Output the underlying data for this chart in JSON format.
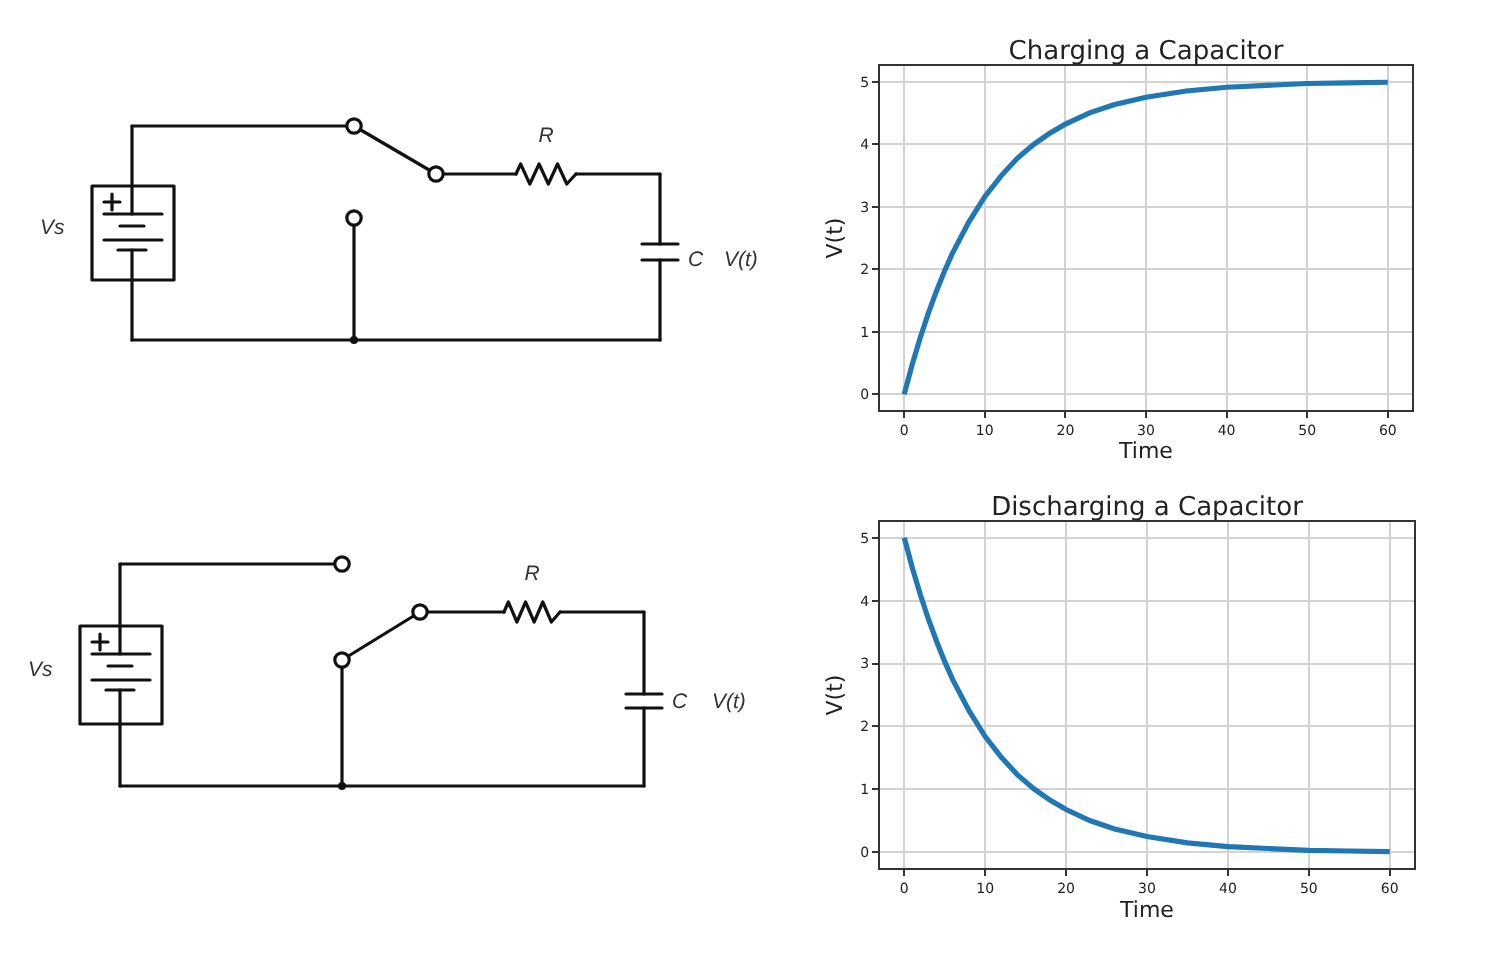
{
  "chart_data": [
    {
      "type": "other",
      "annotations": [
        "Vs",
        "R",
        "C",
        "V(t)"
      ]
    },
    {
      "type": "line",
      "title": "Charging a Capacitor",
      "xlabel": "Time",
      "ylabel": "V(t)",
      "x": [
        0,
        1,
        2,
        3,
        4,
        5,
        6,
        8,
        10,
        12,
        14,
        16,
        18,
        20,
        23,
        26,
        30,
        35,
        40,
        45,
        50,
        55,
        60
      ],
      "series": [
        {
          "color": "#1f77b4",
          "values": [
            0,
            0.48,
            0.91,
            1.3,
            1.65,
            1.97,
            2.26,
            2.75,
            3.16,
            3.49,
            3.77,
            3.99,
            4.17,
            4.32,
            4.5,
            4.63,
            4.75,
            4.85,
            4.91,
            4.94,
            4.97,
            4.98,
            4.99
          ]
        }
      ],
      "xlim": [
        -3,
        63
      ],
      "ylim": [
        -0.25,
        5.25
      ],
      "xticks": [
        0,
        10,
        20,
        30,
        40,
        50,
        60
      ],
      "yticks": [
        0,
        1,
        2,
        3,
        4,
        5
      ],
      "grid": true
    },
    {
      "type": "other",
      "annotations": [
        "Vs",
        "R",
        "C",
        "V(t)"
      ]
    },
    {
      "type": "line",
      "title": "Discharging a Capacitor",
      "xlabel": "Time",
      "ylabel": "V(t)",
      "x": [
        0,
        1,
        2,
        3,
        4,
        5,
        6,
        8,
        10,
        12,
        14,
        16,
        18,
        20,
        23,
        26,
        30,
        35,
        40,
        45,
        50,
        55,
        60
      ],
      "series": [
        {
          "color": "#1f77b4",
          "values": [
            5,
            4.52,
            4.09,
            3.7,
            3.35,
            3.03,
            2.74,
            2.25,
            1.84,
            1.51,
            1.23,
            1.01,
            0.83,
            0.68,
            0.5,
            0.37,
            0.25,
            0.15,
            0.09,
            0.06,
            0.03,
            0.02,
            0.01
          ]
        }
      ],
      "xlim": [
        -3,
        63
      ],
      "ylim": [
        -0.25,
        5.25
      ],
      "xticks": [
        0,
        10,
        20,
        30,
        40,
        50,
        60
      ],
      "yticks": [
        0,
        1,
        2,
        3,
        4,
        5
      ],
      "grid": true
    }
  ]
}
